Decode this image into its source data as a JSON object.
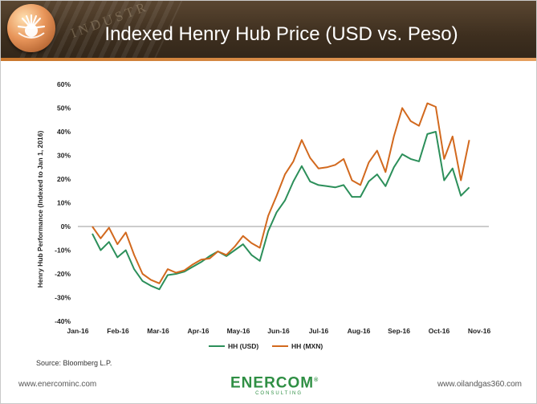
{
  "header": {
    "title": "Indexed Henry Hub Price (USD vs. Peso)",
    "banner_word": "INDUSTR"
  },
  "source": "Source: Bloomberg L.P.",
  "footer": {
    "left_url": "www.enercominc.com",
    "right_url": "www.oilandgas360.com",
    "brand_name": "ENERCOM",
    "brand_trademark": "®",
    "brand_sub": "CONSULTING"
  },
  "colors": {
    "usd": "#2c8f5a",
    "mxn": "#d2691e",
    "banner": "#3e2f1f",
    "accent": "#e07a23"
  },
  "chart_data": {
    "type": "line",
    "title": "",
    "xlabel": "",
    "ylabel": "Henry Hub Performance (Indexed to Jan 1, 2016)",
    "ylim": [
      -0.4,
      0.6
    ],
    "yticks": [
      -0.4,
      -0.3,
      -0.2,
      -0.1,
      0,
      0.1,
      0.2,
      0.3,
      0.4,
      0.5,
      0.6
    ],
    "ytick_labels": [
      "-40%",
      "-30%",
      "-20%",
      "-10%",
      "0%",
      "10%",
      "20%",
      "30%",
      "40%",
      "50%",
      "60%"
    ],
    "x_tick_labels": [
      "Jan-16",
      "Feb-16",
      "Mar-16",
      "Apr-16",
      "May-16",
      "Jun-16",
      "Jul-16",
      "Aug-16",
      "Sep-16",
      "Oct-16",
      "Nov-16"
    ],
    "x_start": "2016-01-01",
    "x_end": "2016-11-30",
    "grid": false,
    "zero_line": true,
    "legend_position": "bottom",
    "series": [
      {
        "name": "HH (USD)",
        "points": [
          [
            "2016-01-05",
            -0.03
          ],
          [
            "2016-01-12",
            -0.1
          ],
          [
            "2016-01-19",
            -0.065
          ],
          [
            "2016-01-26",
            -0.13
          ],
          [
            "2016-02-02",
            -0.1
          ],
          [
            "2016-02-09",
            -0.18
          ],
          [
            "2016-02-16",
            -0.23
          ],
          [
            "2016-02-23",
            -0.25
          ],
          [
            "2016-03-01",
            -0.265
          ],
          [
            "2016-03-08",
            -0.205
          ],
          [
            "2016-03-15",
            -0.2
          ],
          [
            "2016-03-22",
            -0.19
          ],
          [
            "2016-03-29",
            -0.17
          ],
          [
            "2016-04-05",
            -0.15
          ],
          [
            "2016-04-12",
            -0.125
          ],
          [
            "2016-04-19",
            -0.105
          ],
          [
            "2016-04-26",
            -0.125
          ],
          [
            "2016-05-03",
            -0.1
          ],
          [
            "2016-05-10",
            -0.075
          ],
          [
            "2016-05-17",
            -0.12
          ],
          [
            "2016-05-24",
            -0.145
          ],
          [
            "2016-05-31",
            -0.02
          ],
          [
            "2016-06-07",
            0.06
          ],
          [
            "2016-06-14",
            0.11
          ],
          [
            "2016-06-21",
            0.19
          ],
          [
            "2016-06-28",
            0.255
          ],
          [
            "2016-07-05",
            0.19
          ],
          [
            "2016-07-12",
            0.175
          ],
          [
            "2016-07-19",
            0.17
          ],
          [
            "2016-07-26",
            0.165
          ],
          [
            "2016-08-02",
            0.175
          ],
          [
            "2016-08-09",
            0.125
          ],
          [
            "2016-08-16",
            0.125
          ],
          [
            "2016-08-23",
            0.19
          ],
          [
            "2016-08-30",
            0.22
          ],
          [
            "2016-09-06",
            0.17
          ],
          [
            "2016-09-13",
            0.25
          ],
          [
            "2016-09-20",
            0.305
          ],
          [
            "2016-09-27",
            0.285
          ],
          [
            "2016-10-04",
            0.275
          ],
          [
            "2016-10-11",
            0.39
          ],
          [
            "2016-10-18",
            0.4
          ],
          [
            "2016-10-25",
            0.195
          ],
          [
            "2016-11-01",
            0.245
          ],
          [
            "2016-11-08",
            0.13
          ],
          [
            "2016-11-15",
            0.165
          ]
        ]
      },
      {
        "name": "HH (MXN)",
        "points": [
          [
            "2016-01-05",
            0.0
          ],
          [
            "2016-01-12",
            -0.05
          ],
          [
            "2016-01-19",
            -0.005
          ],
          [
            "2016-01-26",
            -0.075
          ],
          [
            "2016-02-02",
            -0.025
          ],
          [
            "2016-02-09",
            -0.12
          ],
          [
            "2016-02-16",
            -0.2
          ],
          [
            "2016-02-23",
            -0.225
          ],
          [
            "2016-03-01",
            -0.24
          ],
          [
            "2016-03-08",
            -0.18
          ],
          [
            "2016-03-15",
            -0.195
          ],
          [
            "2016-03-22",
            -0.185
          ],
          [
            "2016-03-29",
            -0.16
          ],
          [
            "2016-04-05",
            -0.14
          ],
          [
            "2016-04-12",
            -0.135
          ],
          [
            "2016-04-19",
            -0.105
          ],
          [
            "2016-04-26",
            -0.12
          ],
          [
            "2016-05-03",
            -0.085
          ],
          [
            "2016-05-10",
            -0.04
          ],
          [
            "2016-05-17",
            -0.07
          ],
          [
            "2016-05-24",
            -0.09
          ],
          [
            "2016-05-31",
            0.045
          ],
          [
            "2016-06-07",
            0.13
          ],
          [
            "2016-06-14",
            0.22
          ],
          [
            "2016-06-21",
            0.275
          ],
          [
            "2016-06-28",
            0.365
          ],
          [
            "2016-07-05",
            0.29
          ],
          [
            "2016-07-12",
            0.245
          ],
          [
            "2016-07-19",
            0.25
          ],
          [
            "2016-07-26",
            0.26
          ],
          [
            "2016-08-02",
            0.285
          ],
          [
            "2016-08-09",
            0.195
          ],
          [
            "2016-08-16",
            0.175
          ],
          [
            "2016-08-23",
            0.27
          ],
          [
            "2016-08-30",
            0.32
          ],
          [
            "2016-09-06",
            0.23
          ],
          [
            "2016-09-13",
            0.38
          ],
          [
            "2016-09-20",
            0.5
          ],
          [
            "2016-09-27",
            0.445
          ],
          [
            "2016-10-04",
            0.425
          ],
          [
            "2016-10-11",
            0.52
          ],
          [
            "2016-10-18",
            0.505
          ],
          [
            "2016-10-25",
            0.285
          ],
          [
            "2016-11-01",
            0.38
          ],
          [
            "2016-11-08",
            0.195
          ],
          [
            "2016-11-15",
            0.365
          ]
        ]
      }
    ]
  }
}
